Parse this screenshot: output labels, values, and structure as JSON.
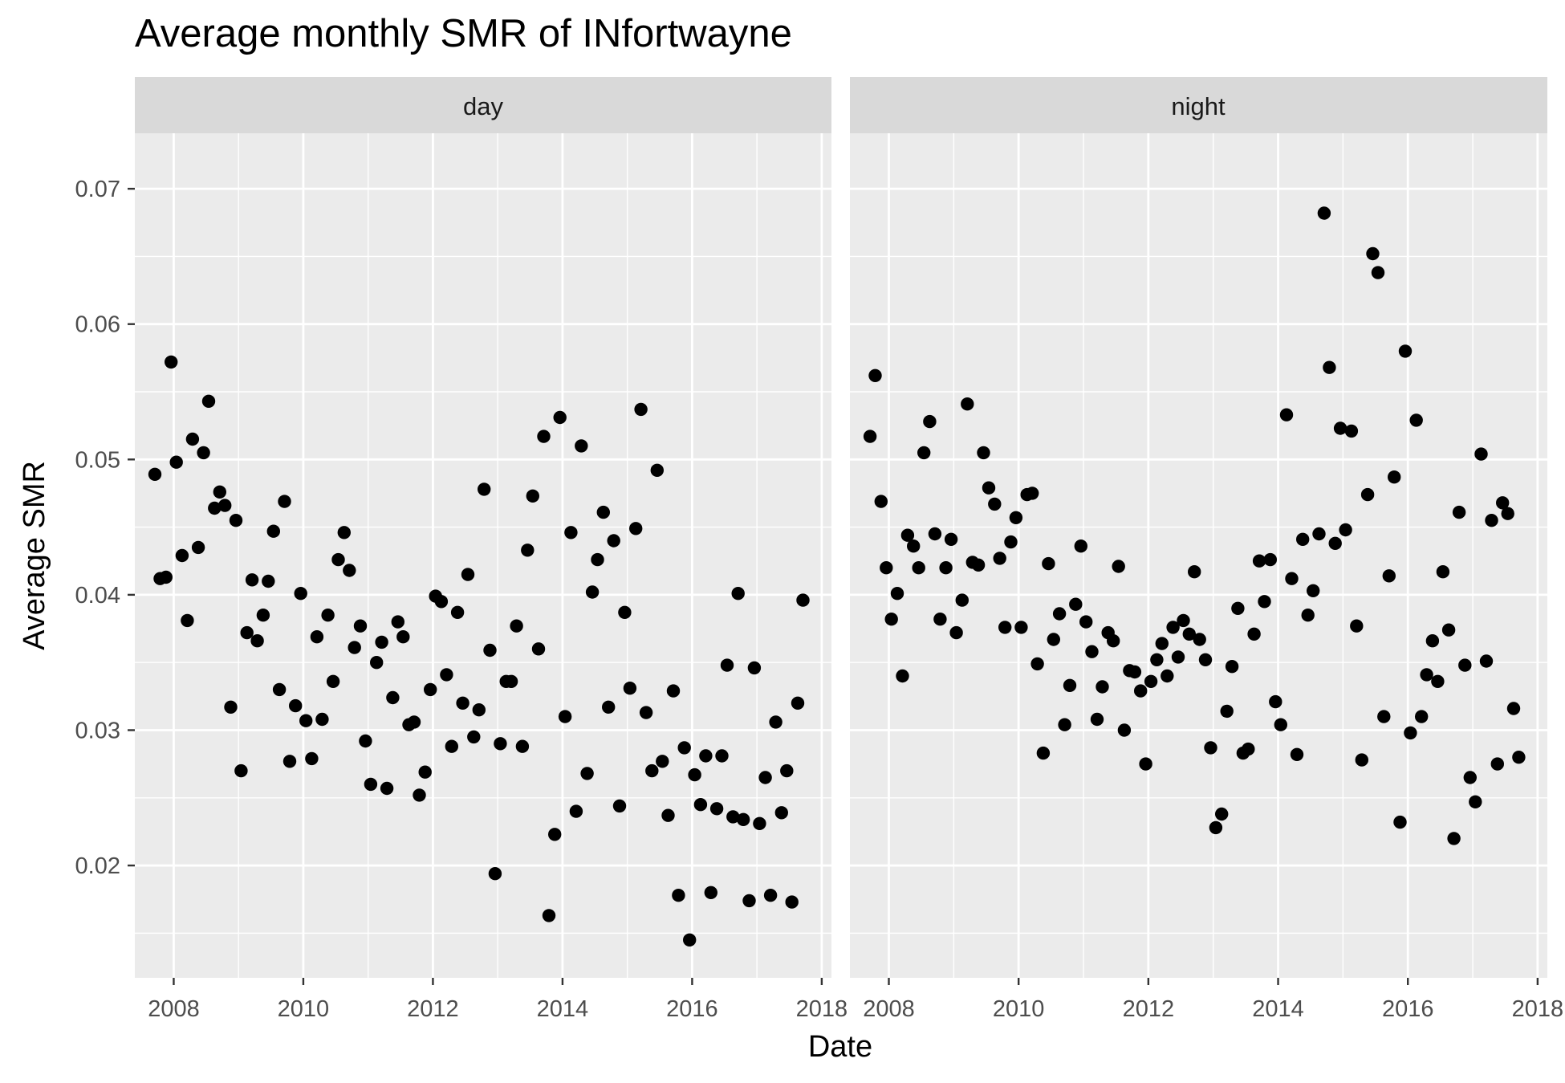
{
  "chart_data": {
    "type": "scatter",
    "title": "Average monthly SMR of INfortwayne",
    "xlabel": "Date",
    "ylabel": "Average SMR",
    "xlim": [
      2007.4,
      2018.15
    ],
    "ylim": [
      0.0117,
      0.0741
    ],
    "x_ticks": [
      2008,
      2010,
      2012,
      2014,
      2016,
      2018
    ],
    "x_tick_labels": [
      "2008",
      "2010",
      "2012",
      "2014",
      "2016",
      "2018"
    ],
    "y_ticks": [
      0.02,
      0.03,
      0.04,
      0.05,
      0.06,
      0.07
    ],
    "y_tick_labels": [
      "0.02",
      "0.03",
      "0.04",
      "0.05",
      "0.06",
      "0.07"
    ],
    "grid": true,
    "point_color": "#000000",
    "panel_background": "#ebebeb",
    "strip_background": "#d9d9d9",
    "panels": [
      {
        "label": "day",
        "points": [
          [
            2007.71,
            0.0489
          ],
          [
            2007.79,
            0.0412
          ],
          [
            2007.88,
            0.0413
          ],
          [
            2007.96,
            0.0572
          ],
          [
            2008.04,
            0.0498
          ],
          [
            2008.13,
            0.0429
          ],
          [
            2008.21,
            0.0381
          ],
          [
            2008.29,
            0.0515
          ],
          [
            2008.38,
            0.0435
          ],
          [
            2008.46,
            0.0505
          ],
          [
            2008.54,
            0.0543
          ],
          [
            2008.63,
            0.0464
          ],
          [
            2008.71,
            0.0476
          ],
          [
            2008.79,
            0.0466
          ],
          [
            2008.88,
            0.0317
          ],
          [
            2008.96,
            0.0455
          ],
          [
            2009.04,
            0.027
          ],
          [
            2009.13,
            0.0372
          ],
          [
            2009.21,
            0.0411
          ],
          [
            2009.29,
            0.0366
          ],
          [
            2009.38,
            0.0385
          ],
          [
            2009.46,
            0.041
          ],
          [
            2009.54,
            0.0447
          ],
          [
            2009.63,
            0.033
          ],
          [
            2009.71,
            0.0469
          ],
          [
            2009.79,
            0.0277
          ],
          [
            2009.88,
            0.0318
          ],
          [
            2009.96,
            0.0401
          ],
          [
            2010.04,
            0.0307
          ],
          [
            2010.13,
            0.0279
          ],
          [
            2010.21,
            0.0369
          ],
          [
            2010.29,
            0.0308
          ],
          [
            2010.38,
            0.0385
          ],
          [
            2010.46,
            0.0336
          ],
          [
            2010.54,
            0.0426
          ],
          [
            2010.63,
            0.0446
          ],
          [
            2010.71,
            0.0418
          ],
          [
            2010.79,
            0.0361
          ],
          [
            2010.88,
            0.0377
          ],
          [
            2010.96,
            0.0292
          ],
          [
            2011.04,
            0.026
          ],
          [
            2011.13,
            0.035
          ],
          [
            2011.21,
            0.0365
          ],
          [
            2011.29,
            0.0257
          ],
          [
            2011.38,
            0.0324
          ],
          [
            2011.46,
            0.038
          ],
          [
            2011.54,
            0.0369
          ],
          [
            2011.63,
            0.0304
          ],
          [
            2011.71,
            0.0306
          ],
          [
            2011.79,
            0.0252
          ],
          [
            2011.88,
            0.0269
          ],
          [
            2011.96,
            0.033
          ],
          [
            2012.04,
            0.0399
          ],
          [
            2012.13,
            0.0395
          ],
          [
            2012.21,
            0.0341
          ],
          [
            2012.29,
            0.0288
          ],
          [
            2012.38,
            0.0387
          ],
          [
            2012.46,
            0.032
          ],
          [
            2012.54,
            0.0415
          ],
          [
            2012.63,
            0.0295
          ],
          [
            2012.71,
            0.0315
          ],
          [
            2012.79,
            0.0478
          ],
          [
            2012.88,
            0.0359
          ],
          [
            2012.96,
            0.0194
          ],
          [
            2013.04,
            0.029
          ],
          [
            2013.13,
            0.0336
          ],
          [
            2013.21,
            0.0336
          ],
          [
            2013.29,
            0.0377
          ],
          [
            2013.38,
            0.0288
          ],
          [
            2013.46,
            0.0433
          ],
          [
            2013.54,
            0.0473
          ],
          [
            2013.63,
            0.036
          ],
          [
            2013.71,
            0.0517
          ],
          [
            2013.79,
            0.0163
          ],
          [
            2013.88,
            0.0223
          ],
          [
            2013.96,
            0.0531
          ],
          [
            2014.04,
            0.031
          ],
          [
            2014.13,
            0.0446
          ],
          [
            2014.21,
            0.024
          ],
          [
            2014.29,
            0.051
          ],
          [
            2014.38,
            0.0268
          ],
          [
            2014.46,
            0.0402
          ],
          [
            2014.54,
            0.0426
          ],
          [
            2014.63,
            0.0461
          ],
          [
            2014.71,
            0.0317
          ],
          [
            2014.79,
            0.044
          ],
          [
            2014.88,
            0.0244
          ],
          [
            2014.96,
            0.0387
          ],
          [
            2015.04,
            0.0331
          ],
          [
            2015.13,
            0.0449
          ],
          [
            2015.21,
            0.0537
          ],
          [
            2015.29,
            0.0313
          ],
          [
            2015.38,
            0.027
          ],
          [
            2015.46,
            0.0492
          ],
          [
            2015.54,
            0.0277
          ],
          [
            2015.63,
            0.0237
          ],
          [
            2015.71,
            0.0329
          ],
          [
            2015.79,
            0.0178
          ],
          [
            2015.88,
            0.0287
          ],
          [
            2015.96,
            0.0145
          ],
          [
            2016.04,
            0.0267
          ],
          [
            2016.13,
            0.0245
          ],
          [
            2016.21,
            0.0281
          ],
          [
            2016.29,
            0.018
          ],
          [
            2016.38,
            0.0242
          ],
          [
            2016.46,
            0.0281
          ],
          [
            2016.54,
            0.0348
          ],
          [
            2016.63,
            0.0236
          ],
          [
            2016.71,
            0.0401
          ],
          [
            2016.79,
            0.0234
          ],
          [
            2016.88,
            0.0174
          ],
          [
            2016.96,
            0.0346
          ],
          [
            2017.04,
            0.0231
          ],
          [
            2017.13,
            0.0265
          ],
          [
            2017.21,
            0.0178
          ],
          [
            2017.29,
            0.0306
          ],
          [
            2017.38,
            0.0239
          ],
          [
            2017.46,
            0.027
          ],
          [
            2017.54,
            0.0173
          ],
          [
            2017.63,
            0.032
          ],
          [
            2017.71,
            0.0396
          ]
        ]
      },
      {
        "label": "night",
        "points": [
          [
            2007.71,
            0.0517
          ],
          [
            2007.79,
            0.0562
          ],
          [
            2007.88,
            0.0469
          ],
          [
            2007.96,
            0.042
          ],
          [
            2008.04,
            0.0382
          ],
          [
            2008.13,
            0.0401
          ],
          [
            2008.21,
            0.034
          ],
          [
            2008.29,
            0.0444
          ],
          [
            2008.38,
            0.0436
          ],
          [
            2008.46,
            0.042
          ],
          [
            2008.54,
            0.0505
          ],
          [
            2008.63,
            0.0528
          ],
          [
            2008.71,
            0.0445
          ],
          [
            2008.79,
            0.0382
          ],
          [
            2008.88,
            0.042
          ],
          [
            2008.96,
            0.0441
          ],
          [
            2009.04,
            0.0372
          ],
          [
            2009.13,
            0.0396
          ],
          [
            2009.21,
            0.0541
          ],
          [
            2009.29,
            0.0424
          ],
          [
            2009.38,
            0.0422
          ],
          [
            2009.46,
            0.0505
          ],
          [
            2009.54,
            0.0479
          ],
          [
            2009.63,
            0.0467
          ],
          [
            2009.71,
            0.0427
          ],
          [
            2009.79,
            0.0376
          ],
          [
            2009.88,
            0.0439
          ],
          [
            2009.96,
            0.0457
          ],
          [
            2010.04,
            0.0376
          ],
          [
            2010.13,
            0.0474
          ],
          [
            2010.21,
            0.0475
          ],
          [
            2010.29,
            0.0349
          ],
          [
            2010.38,
            0.0283
          ],
          [
            2010.46,
            0.0423
          ],
          [
            2010.54,
            0.0367
          ],
          [
            2010.63,
            0.0386
          ],
          [
            2010.71,
            0.0304
          ],
          [
            2010.79,
            0.0333
          ],
          [
            2010.88,
            0.0393
          ],
          [
            2010.96,
            0.0436
          ],
          [
            2011.04,
            0.038
          ],
          [
            2011.13,
            0.0358
          ],
          [
            2011.21,
            0.0308
          ],
          [
            2011.29,
            0.0332
          ],
          [
            2011.38,
            0.0372
          ],
          [
            2011.46,
            0.0366
          ],
          [
            2011.54,
            0.0421
          ],
          [
            2011.63,
            0.03
          ],
          [
            2011.71,
            0.0344
          ],
          [
            2011.79,
            0.0343
          ],
          [
            2011.88,
            0.0329
          ],
          [
            2011.96,
            0.0275
          ],
          [
            2012.04,
            0.0336
          ],
          [
            2012.13,
            0.0352
          ],
          [
            2012.21,
            0.0364
          ],
          [
            2012.29,
            0.034
          ],
          [
            2012.38,
            0.0376
          ],
          [
            2012.46,
            0.0354
          ],
          [
            2012.54,
            0.0381
          ],
          [
            2012.63,
            0.0371
          ],
          [
            2012.71,
            0.0417
          ],
          [
            2012.79,
            0.0367
          ],
          [
            2012.88,
            0.0352
          ],
          [
            2012.96,
            0.0287
          ],
          [
            2013.04,
            0.0228
          ],
          [
            2013.13,
            0.0238
          ],
          [
            2013.21,
            0.0314
          ],
          [
            2013.29,
            0.0347
          ],
          [
            2013.38,
            0.039
          ],
          [
            2013.46,
            0.0283
          ],
          [
            2013.54,
            0.0286
          ],
          [
            2013.63,
            0.0371
          ],
          [
            2013.71,
            0.0425
          ],
          [
            2013.79,
            0.0395
          ],
          [
            2013.88,
            0.0426
          ],
          [
            2013.96,
            0.0321
          ],
          [
            2014.04,
            0.0304
          ],
          [
            2014.13,
            0.0533
          ],
          [
            2014.21,
            0.0412
          ],
          [
            2014.29,
            0.0282
          ],
          [
            2014.38,
            0.0441
          ],
          [
            2014.46,
            0.0385
          ],
          [
            2014.54,
            0.0403
          ],
          [
            2014.63,
            0.0445
          ],
          [
            2014.71,
            0.0682
          ],
          [
            2014.79,
            0.0568
          ],
          [
            2014.88,
            0.0438
          ],
          [
            2014.96,
            0.0523
          ],
          [
            2015.04,
            0.0448
          ],
          [
            2015.13,
            0.0521
          ],
          [
            2015.21,
            0.0377
          ],
          [
            2015.29,
            0.0278
          ],
          [
            2015.38,
            0.0474
          ],
          [
            2015.46,
            0.0652
          ],
          [
            2015.54,
            0.0638
          ],
          [
            2015.63,
            0.031
          ],
          [
            2015.71,
            0.0414
          ],
          [
            2015.79,
            0.0487
          ],
          [
            2015.88,
            0.0232
          ],
          [
            2015.96,
            0.058
          ],
          [
            2016.04,
            0.0298
          ],
          [
            2016.13,
            0.0529
          ],
          [
            2016.21,
            0.031
          ],
          [
            2016.29,
            0.0341
          ],
          [
            2016.38,
            0.0366
          ],
          [
            2016.46,
            0.0336
          ],
          [
            2016.54,
            0.0417
          ],
          [
            2016.63,
            0.0374
          ],
          [
            2016.71,
            0.022
          ],
          [
            2016.79,
            0.0461
          ],
          [
            2016.88,
            0.0348
          ],
          [
            2016.96,
            0.0265
          ],
          [
            2017.04,
            0.0247
          ],
          [
            2017.13,
            0.0504
          ],
          [
            2017.21,
            0.0351
          ],
          [
            2017.29,
            0.0455
          ],
          [
            2017.38,
            0.0275
          ],
          [
            2017.46,
            0.0468
          ],
          [
            2017.54,
            0.046
          ],
          [
            2017.63,
            0.0316
          ],
          [
            2017.71,
            0.028
          ]
        ]
      }
    ]
  }
}
